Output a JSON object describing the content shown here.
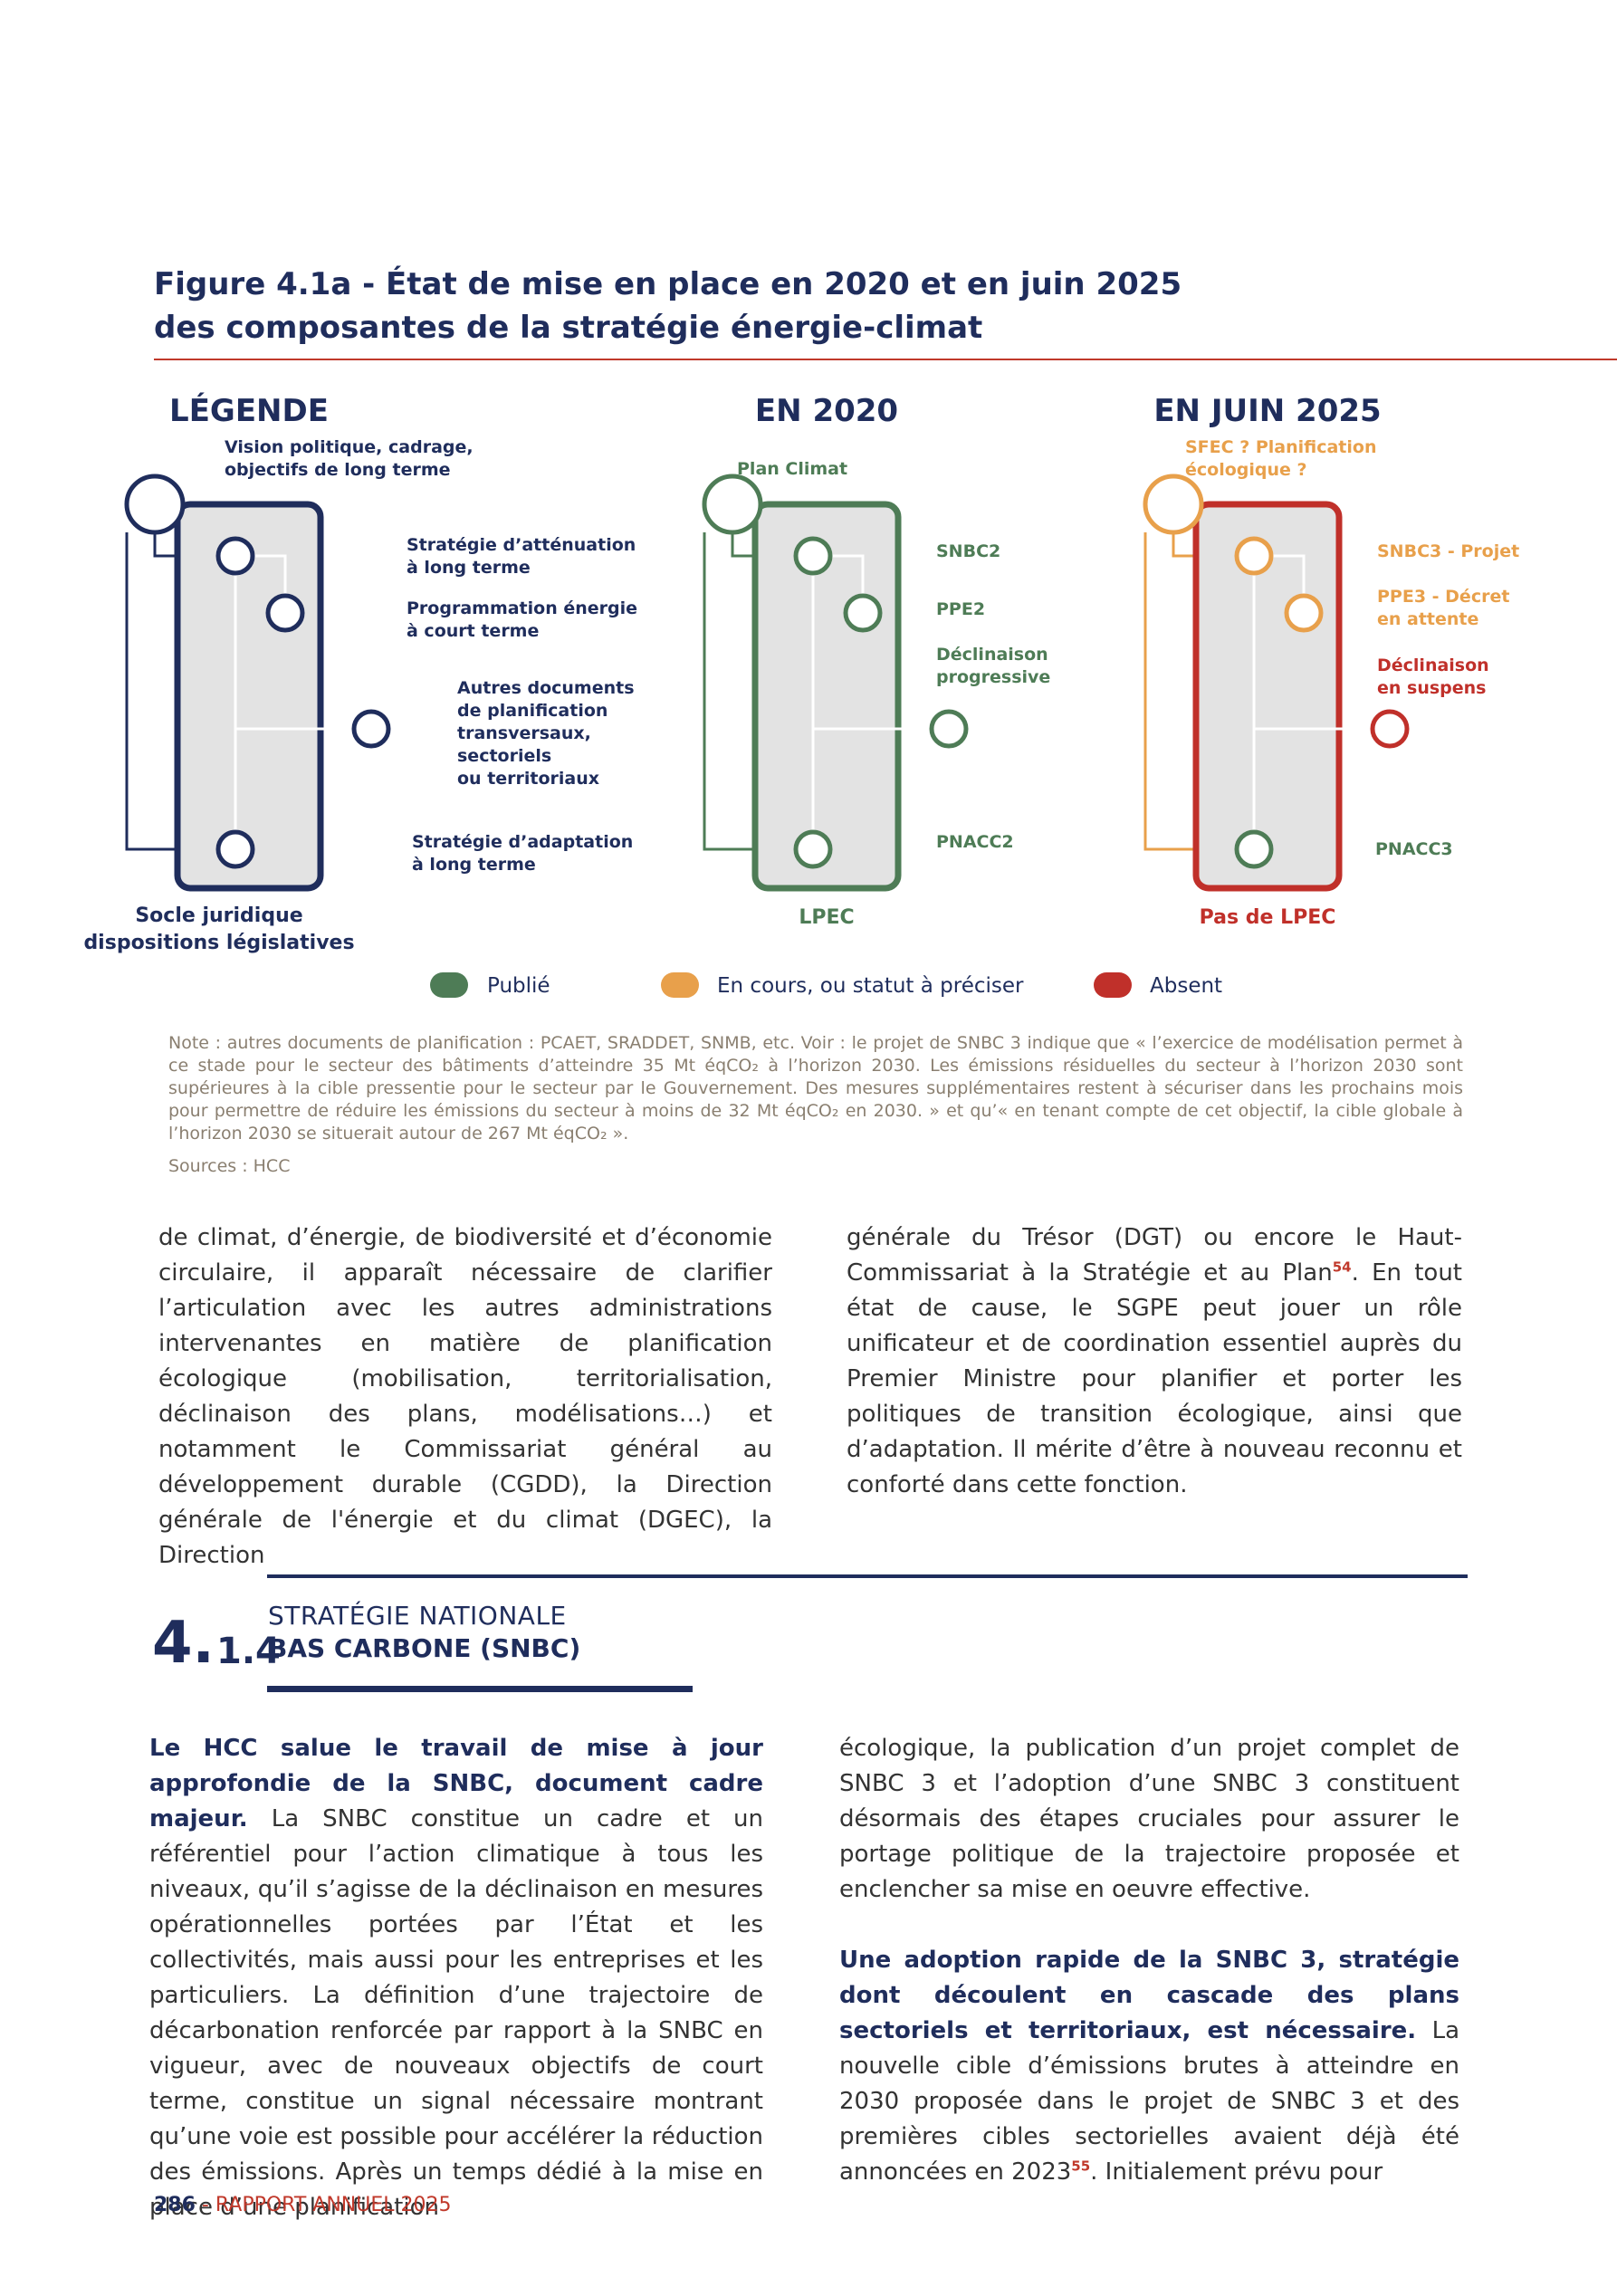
{
  "figure": {
    "title_line1": "Figure 4.1a - État de mise en place en 2020 et en juin 2025",
    "title_line2": "des composantes de la stratégie énergie-climat",
    "columns": {
      "legend": {
        "heading": "LÉGENDE",
        "vision": [
          "Vision politique, cadrage,",
          "objectifs de long terme"
        ],
        "attenuation": [
          "Stratégie d’atténuation",
          "à long terme"
        ],
        "programmation": [
          "Programmation énergie",
          "à court terme"
        ],
        "autres": [
          "Autres documents",
          "de planification",
          "transversaux,",
          "sectoriels",
          "ou territoriaux"
        ],
        "adaptation": [
          "Stratégie d’adaptation",
          "à long terme"
        ],
        "base": [
          "Socle juridique",
          "dispositions législatives"
        ]
      },
      "y2020": {
        "heading": "EN 2020",
        "vision": [
          "Plan Climat"
        ],
        "attenuation": [
          "SNBC2"
        ],
        "programmation": [
          "PPE2"
        ],
        "autres": [
          "Déclinaison",
          "progressive"
        ],
        "adaptation": [
          "PNACC2"
        ],
        "base": [
          "LPEC"
        ]
      },
      "y2025": {
        "heading": "EN JUIN 2025",
        "vision": [
          "SFEC ? Planification",
          "écologique ?"
        ],
        "attenuation": [
          "SNBC3 - Projet"
        ],
        "programmation": [
          "PPE3 - Décret",
          "en attente"
        ],
        "autres": [
          "Déclinaison",
          "en suspens"
        ],
        "adaptation": [
          "PNACC3"
        ],
        "base": [
          "Pas de LPEC"
        ]
      }
    },
    "status_legend": [
      {
        "label": "Publié",
        "color": "#4e7c56"
      },
      {
        "label": "En cours, ou statut à préciser",
        "color": "#e8a04b"
      },
      {
        "label": "Absent",
        "color": "#c0302a"
      }
    ],
    "colors": {
      "navy": "#1f2d5c",
      "green": "#4e7c56",
      "orange": "#e8a04b",
      "red": "#c0302a",
      "box_fill": "#e3e3e3"
    },
    "note": "Note : autres documents de planification : PCAET, SRADDET, SNMB, etc. Voir : le projet de SNBC 3 indique que « l’exercice de modélisation permet à ce stade pour le secteur des bâtiments d’atteindre 35 Mt éqCO₂ à l’horizon 2030. Les émissions résiduelles du secteur à l’horizon 2030 sont supérieures à la cible pressentie pour le secteur par le Gouvernement. Des mesures supplémentaires restent à sécuriser dans les prochains mois pour permettre de réduire les émissions du secteur à moins de 32 Mt éqCO₂ en 2030. » et qu’« en tenant compte de cet objectif, la cible globale à l’horizon 2030 se situerait autour de 267 Mt éqCO₂ ».",
    "sources": "Sources : HCC"
  },
  "body_top": {
    "left": "de climat, d’énergie, de biodiversité et d’économie circulaire, il apparaît nécessaire de clarifier l’articulation avec les autres administrations intervenantes en matière de planification écologique (mobilisation, territorialisation, déclinaison des plans, modélisations…) et notamment le Commissariat général au développement durable (CGDD), la Direction générale de l'énergie et du climat (DGEC), la Direction",
    "right_a": "générale du Trésor (DGT) ou encore le Haut-Commissariat à la Stratégie et au Plan",
    "right_sup": "54",
    "right_b": ". En tout état de cause, le SGPE peut jouer un rôle unificateur et de coordination essentiel auprès du Premier Ministre pour planifier et porter les politiques de transition écologique, ainsi que d’adaptation. Il mérite d’être à nouveau reconnu et conforté dans cette fonction."
  },
  "section": {
    "number_main": "4.",
    "number_sub": "1.4",
    "title_line1": "STRATÉGIE NATIONALE",
    "title_line2": "BAS CARBONE (SNBC)"
  },
  "body_bottom": {
    "left_bold": "Le HCC salue le travail de mise à jour approfondie de la SNBC, document cadre majeur.",
    "left_text": " La SNBC constitue un cadre et un référentiel pour l’action climatique à tous les niveaux, qu’il s’agisse de la déclinaison en mesures opérationnelles portées par l’État et les collectivités, mais aussi pour les entreprises et les particuliers. La définition d’une trajectoire de décarbonation renforcée par rapport à la SNBC en vigueur, avec de nouveaux objectifs de court terme, constitue un signal nécessaire montrant qu’une voie est possible pour accélérer la réduction des émissions. Après un temps dédié à la mise en place d’une planification",
    "right_p1": "écologique, la publication d’un projet complet de SNBC 3 et l’adoption d’une SNBC 3 constituent désormais des étapes cruciales pour assurer le portage politique de la trajectoire proposée et enclencher sa mise en oeuvre effective.",
    "right_p2_bold": "Une adoption rapide de la SNBC 3, stratégie dont découlent en cascade des plans sectoriels et territoriaux, est nécessaire.",
    "right_p2_a": " La nouvelle cible d’émissions brutes à atteindre en 2030 proposée dans le projet de SNBC 3 et des premières cibles sectorielles avaient déjà été annoncées en 2023",
    "right_p2_sup": "55",
    "right_p2_b": ". Initialement prévu pour"
  },
  "footer": {
    "page": "286",
    "separator": " - ",
    "label": "RAPPORT ANNUEL 2025"
  }
}
